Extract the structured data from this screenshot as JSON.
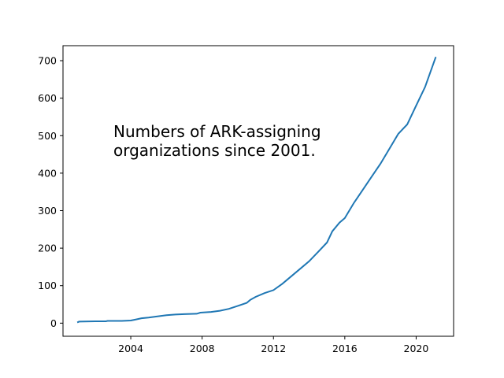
{
  "chart_data": {
    "type": "line",
    "title": "",
    "xlabel": "",
    "ylabel": "",
    "xlim": [
      2000.2,
      2022.1
    ],
    "ylim": [
      -35,
      740
    ],
    "grid": false,
    "legend": "none",
    "annotation": {
      "lines": [
        "Numbers of ARK-assigning",
        "organizations since 2001."
      ],
      "x": 2002.9,
      "y": 508
    },
    "xticks": [
      2004,
      2008,
      2012,
      2016,
      2020
    ],
    "xtick_labels": [
      "2004",
      "2008",
      "2012",
      "2016",
      "2020"
    ],
    "yticks": [
      0,
      100,
      200,
      300,
      400,
      500,
      600,
      700
    ],
    "ytick_labels": [
      "0",
      "100",
      "200",
      "300",
      "400",
      "500",
      "600",
      "700"
    ],
    "series": [
      {
        "color": "#1f77b4",
        "x": [
          2001.0,
          2001.1,
          2002.0,
          2002.6,
          2002.7,
          2003.5,
          2004.0,
          2004.3,
          2004.6,
          2005.0,
          2005.5,
          2006.0,
          2006.5,
          2007.0,
          2007.7,
          2007.9,
          2008.5,
          2009.0,
          2009.5,
          2010.0,
          2010.5,
          2010.7,
          2011.0,
          2011.5,
          2012.0,
          2012.5,
          2013.0,
          2013.5,
          2014.0,
          2014.5,
          2015.0,
          2015.3,
          2015.7,
          2016.0,
          2016.5,
          2017.0,
          2017.5,
          2018.0,
          2018.5,
          2019.0,
          2019.5,
          2020.0,
          2020.5,
          2020.8,
          2021.1
        ],
        "y": [
          2,
          4,
          5,
          5,
          6,
          6,
          7,
          10,
          13,
          15,
          18,
          21,
          23,
          24,
          25,
          28,
          30,
          33,
          38,
          46,
          54,
          62,
          70,
          80,
          88,
          105,
          125,
          145,
          165,
          190,
          215,
          245,
          268,
          280,
          320,
          355,
          390,
          425,
          465,
          505,
          530,
          580,
          630,
          670,
          710
        ]
      }
    ]
  }
}
